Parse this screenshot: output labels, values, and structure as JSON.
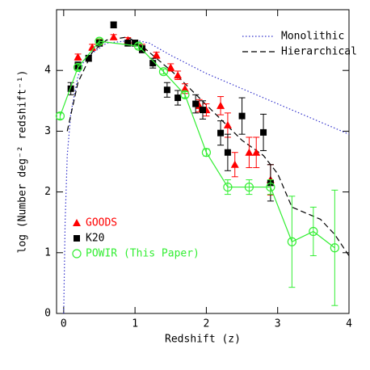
{
  "chart_data": {
    "type": "scatter",
    "x_label": "Redshift (z)",
    "y_label": "log (Number deg⁻² redshift⁻¹)",
    "xlim": [
      -0.1,
      4
    ],
    "ylim": [
      0,
      5
    ],
    "xticks": [
      0,
      1,
      2,
      3,
      4
    ],
    "yticks": [
      0,
      1,
      2,
      3,
      4
    ],
    "series": [
      {
        "name": "Monolithic",
        "color": "#3333cc",
        "style": "dotted",
        "legend": "top-right",
        "x": [
          0,
          0.02,
          0.05,
          0.1,
          0.2,
          0.3,
          0.6,
          1,
          1.2,
          1.5,
          2,
          2.5,
          3,
          3.5,
          4
        ],
        "values": [
          0,
          1.5,
          2.6,
          3.3,
          3.9,
          4.2,
          4.45,
          4.5,
          4.45,
          4.25,
          3.95,
          3.7,
          3.45,
          3.2,
          2.95
        ]
      },
      {
        "name": "Hierarchical",
        "color": "#000000",
        "style": "dashed",
        "legend": "top-right",
        "x": [
          0.05,
          0.2,
          0.4,
          0.6,
          0.9,
          1.1,
          1.3,
          1.6,
          1.9,
          2.2,
          2.5,
          2.8,
          3.0,
          3.2,
          3.4,
          3.6,
          3.8,
          4.0
        ],
        "values": [
          3,
          3.8,
          4.3,
          4.5,
          4.55,
          4.4,
          4.2,
          3.9,
          3.55,
          3.2,
          2.85,
          2.6,
          2.3,
          1.75,
          1.65,
          1.55,
          1.3,
          0.95
        ]
      },
      {
        "name": "GOODS",
        "color": "#ff0000",
        "marker": "triangle",
        "legend": "bottom-left",
        "x": [
          0.2,
          0.4,
          0.5,
          0.7,
          0.9,
          1.1,
          1.3,
          1.5,
          1.6,
          1.7,
          1.9,
          2.0,
          2.2,
          2.3,
          2.4,
          2.6,
          2.7,
          2.9
        ],
        "values": [
          4.22,
          4.38,
          4.47,
          4.55,
          4.5,
          4.38,
          4.25,
          4.05,
          3.92,
          3.7,
          3.42,
          3.35,
          3.42,
          3.1,
          2.45,
          2.65,
          2.65,
          2.2
        ],
        "errors": [
          0.05,
          0.05,
          0.04,
          0.04,
          0.04,
          0.05,
          0.05,
          0.06,
          0.07,
          0.08,
          0.1,
          0.1,
          0.15,
          0.2,
          0.2,
          0.25,
          0.25,
          0.25
        ]
      },
      {
        "name": "K20",
        "color": "#000000",
        "marker": "square",
        "legend": "bottom-left",
        "x": [
          0.1,
          0.2,
          0.35,
          0.5,
          0.7,
          0.9,
          1.0,
          1.1,
          1.25,
          1.45,
          1.6,
          1.85,
          1.95,
          2.2,
          2.3,
          2.5,
          2.8,
          2.9
        ],
        "values": [
          3.7,
          4.08,
          4.2,
          4.45,
          4.75,
          4.45,
          4.45,
          4.35,
          4.12,
          3.68,
          3.55,
          3.45,
          3.35,
          2.97,
          2.65,
          3.25,
          2.98,
          2.15
        ],
        "errors": [
          0.1,
          0.06,
          0.05,
          0.05,
          0.05,
          0.05,
          0.05,
          0.06,
          0.08,
          0.12,
          0.12,
          0.15,
          0.15,
          0.2,
          0.3,
          0.3,
          0.3,
          0.3
        ]
      },
      {
        "name": "POWIR (This Paper)",
        "color": "#33ee33",
        "marker": "circle",
        "line": true,
        "legend": "bottom-left",
        "x": [
          -0.05,
          0.2,
          0.5,
          1.05,
          1.4,
          1.7,
          2.0,
          2.3,
          2.6,
          2.9,
          3.2,
          3.5,
          3.8
        ],
        "values": [
          3.25,
          4.05,
          4.48,
          4.4,
          3.98,
          3.6,
          2.65,
          2.08,
          2.08,
          2.08,
          1.18,
          1.35,
          1.08
        ],
        "errors": [
          0.05,
          0.05,
          0.04,
          0.04,
          0.04,
          0.05,
          0.06,
          0.12,
          0.12,
          0.12,
          0.75,
          0.4,
          0.95
        ]
      }
    ]
  }
}
